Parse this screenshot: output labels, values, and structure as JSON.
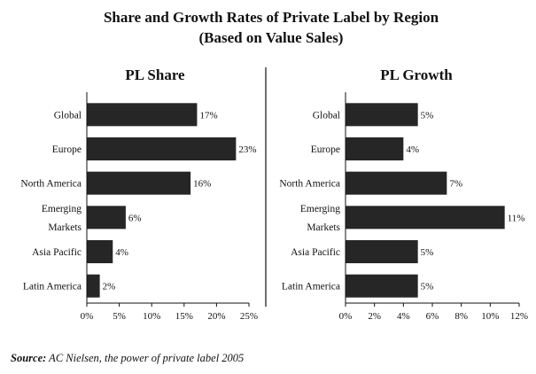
{
  "title_line1": "Share and Growth  Rates of Private Label by Region",
  "title_line2": "(Based on Value Sales)",
  "source_label": "Source:",
  "source_text": " AC Nielsen, the power of private label 2005",
  "chart_data": [
    {
      "type": "bar",
      "orientation": "horizontal",
      "title": "PL Share",
      "categories": [
        [
          "Global"
        ],
        [
          "Europe"
        ],
        [
          "North America"
        ],
        [
          "Emerging",
          "Markets"
        ],
        [
          "Asia Pacific"
        ],
        [
          "Latin America"
        ]
      ],
      "values": [
        17,
        23,
        16,
        6,
        4,
        2
      ],
      "data_labels": [
        "17%",
        "23%",
        "16%",
        "6%",
        "4%",
        "2%"
      ],
      "xlim": [
        0,
        25
      ],
      "xticks": [
        0,
        5,
        10,
        15,
        20,
        25
      ],
      "xtick_labels": [
        "0%",
        "5%",
        "10%",
        "15%",
        "20%",
        "25%"
      ],
      "grid": false,
      "bar_color": "#262626"
    },
    {
      "type": "bar",
      "orientation": "horizontal",
      "title": "PL Growth",
      "categories": [
        [
          "Global"
        ],
        [
          "Europe"
        ],
        [
          "North America"
        ],
        [
          "Emerging",
          "Markets"
        ],
        [
          "Asia Pacific"
        ],
        [
          "Latin America"
        ]
      ],
      "values": [
        5,
        4,
        7,
        11,
        5,
        5
      ],
      "data_labels": [
        "5%",
        "4%",
        "7%",
        "11%",
        "5%",
        "5%"
      ],
      "xlim": [
        0,
        12
      ],
      "xticks": [
        0,
        2,
        4,
        6,
        8,
        10,
        12
      ],
      "xtick_labels": [
        "0%",
        "2%",
        "4%",
        "6%",
        "8%",
        "10%",
        "12%"
      ],
      "grid": false,
      "bar_color": "#262626"
    }
  ]
}
